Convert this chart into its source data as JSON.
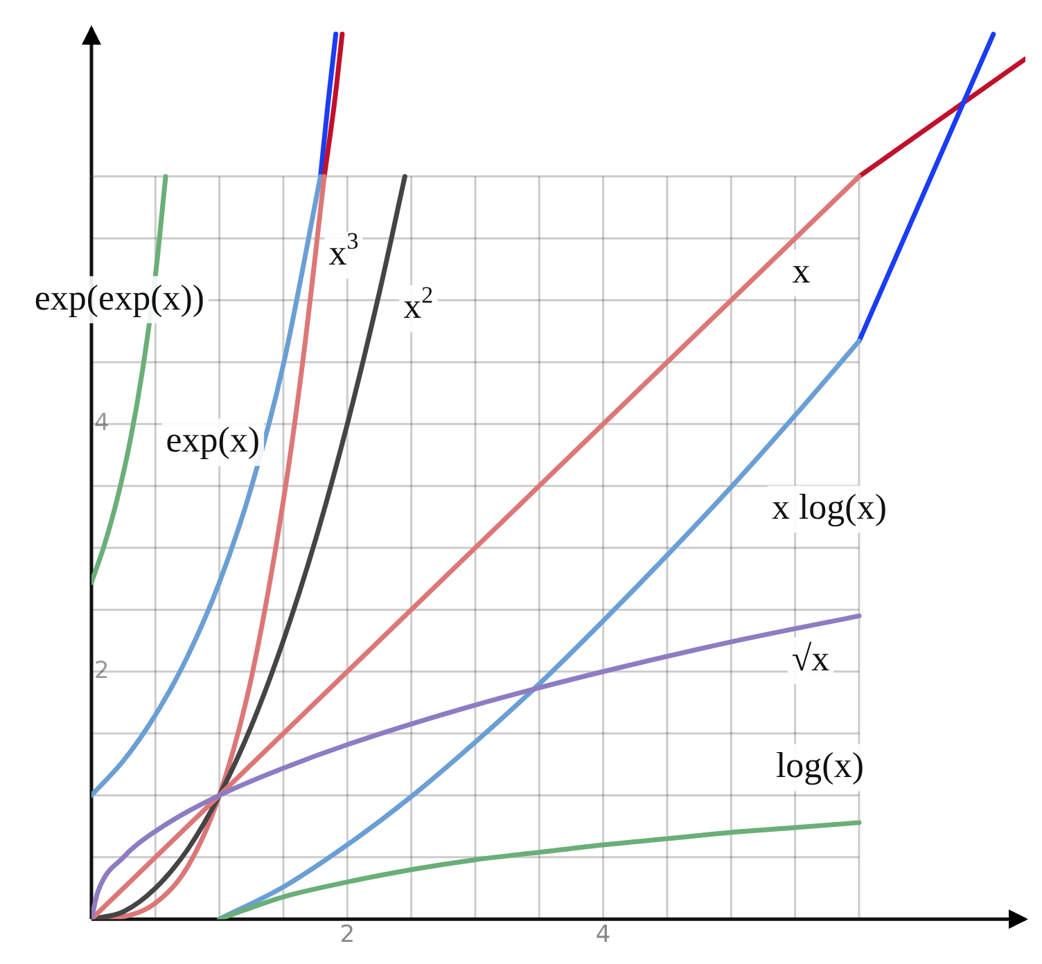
{
  "chart_data": {
    "type": "line",
    "xlim": [
      0,
      7.3
    ],
    "ylim": [
      0,
      7.2
    ],
    "xticks": [
      {
        "value": 0,
        "label": null
      },
      {
        "value": 0.5,
        "label": null
      },
      {
        "value": 1,
        "label": null
      },
      {
        "value": 1.5,
        "label": null
      },
      2,
      {
        "value": 2.5,
        "label": null
      },
      {
        "value": 3,
        "label": null
      },
      {
        "value": 3.5,
        "label": null
      },
      4,
      {
        "value": 4.5,
        "label": null
      },
      {
        "value": 5,
        "label": null
      },
      {
        "value": 5.5,
        "label": null
      },
      {
        "value": 6,
        "label": null
      }
    ],
    "yticks": [
      {
        "value": 0,
        "label": null
      },
      {
        "value": 0.5,
        "label": null
      },
      {
        "value": 1,
        "label": null
      },
      {
        "value": 1.5,
        "label": null
      },
      2,
      {
        "value": 2.5,
        "label": null
      },
      {
        "value": 3,
        "label": null
      },
      {
        "value": 3.5,
        "label": null
      },
      4,
      {
        "value": 4.5,
        "label": null
      },
      {
        "value": 5,
        "label": null
      },
      {
        "value": 5.5,
        "label": null
      },
      {
        "value": 6,
        "label": null
      }
    ],
    "grid": true,
    "legend": false,
    "series": [
      {
        "name": "log(x)",
        "color": "#6aae78",
        "x": [
          1,
          1.5,
          2,
          2.5,
          3,
          3.5,
          4,
          4.5,
          5,
          5.5,
          6
        ],
        "values": [
          0,
          0.18,
          0.3,
          0.4,
          0.48,
          0.54,
          0.6,
          0.65,
          0.7,
          0.74,
          0.78
        ]
      },
      {
        "name": "√x",
        "color": "#8e7cc3",
        "x": [
          0,
          0.05,
          0.25,
          0.5,
          1,
          1.5,
          2,
          3,
          4,
          5,
          6
        ],
        "values": [
          0,
          0.22,
          0.5,
          0.71,
          1,
          1.22,
          1.41,
          1.73,
          2,
          2.24,
          2.45
        ]
      },
      {
        "name": "x log(x)",
        "color": "#6a9fd4",
        "x": [
          1,
          1.5,
          2,
          2.5,
          3,
          3.5,
          4,
          4.5,
          5,
          5.5,
          6
        ],
        "values": [
          0,
          0.26,
          0.6,
          0.99,
          1.43,
          1.9,
          2.41,
          2.94,
          3.49,
          4.07,
          4.67
        ]
      },
      {
        "color": "#1a3cf5",
        "x": [
          6,
          6.5,
          7.05
        ],
        "values": [
          4.67,
          5.85,
          7.15
        ]
      },
      {
        "name": "x",
        "color": "#dd7777",
        "x": [
          0,
          6
        ],
        "values": [
          0,
          6
        ]
      },
      {
        "color": "#c0102a",
        "x": [
          6,
          7.3
        ],
        "values": [
          6,
          6.95
        ]
      },
      {
        "name": "x$^{2}$",
        "color": "#444444",
        "x": [
          0,
          0.25,
          0.5,
          0.75,
          1,
          1.25,
          1.5,
          1.75,
          2,
          2.25,
          2.45
        ],
        "values": [
          0,
          0.06,
          0.25,
          0.56,
          1,
          1.56,
          2.25,
          3.06,
          4,
          5.06,
          6
        ]
      },
      {
        "name": "x$^{3}$",
        "color": "#dd7777",
        "x": [
          0,
          0.25,
          0.5,
          0.75,
          1,
          1.25,
          1.5,
          1.65,
          1.82
        ],
        "values": [
          0,
          0.02,
          0.13,
          0.42,
          1,
          1.95,
          3.38,
          4.49,
          6
        ]
      },
      {
        "color": "#c0102a",
        "x": [
          1.82,
          1.9,
          1.96
        ],
        "values": [
          6,
          6.6,
          7.15
        ]
      },
      {
        "name": "exp(x)",
        "color": "#6a9fd4",
        "x": [
          0,
          0.25,
          0.5,
          0.75,
          1,
          1.25,
          1.5,
          1.79
        ],
        "values": [
          1,
          1.28,
          1.65,
          2.12,
          2.72,
          3.49,
          4.48,
          6
        ]
      },
      {
        "color": "#1a3cf5",
        "x": [
          1.79,
          1.85,
          1.91
        ],
        "values": [
          6,
          6.6,
          7.15
        ]
      },
      {
        "name": "exp(exp(x))",
        "color": "#6aae78",
        "x": [
          0,
          0.1,
          0.2,
          0.3,
          0.4,
          0.5,
          0.58
        ],
        "values": [
          2.72,
          3.02,
          3.39,
          3.85,
          4.44,
          5.2,
          6
        ]
      }
    ]
  }
}
